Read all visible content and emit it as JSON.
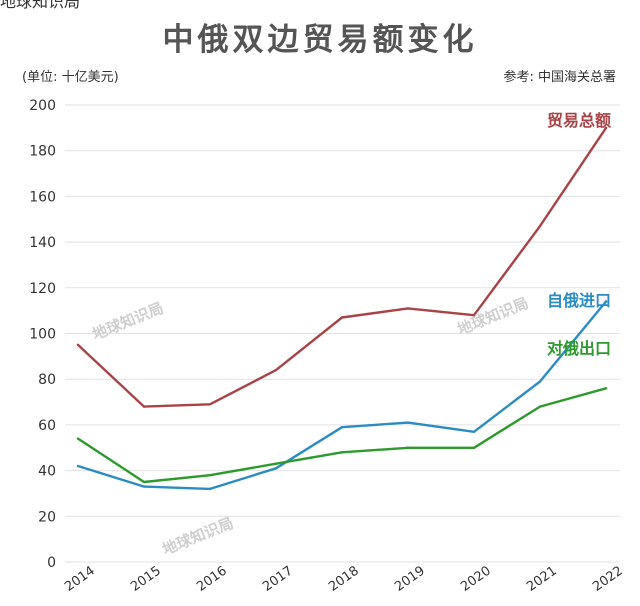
{
  "header": {
    "top_cut_text": "地球知识局",
    "title": "中俄双边贸易额变化",
    "unit": "(单位: 十亿美元)",
    "source": "参考: 中国海关总署"
  },
  "watermarks": [
    "地球知识局",
    "地球知识局",
    "地球知识局"
  ],
  "colors": {
    "total": "#a84448",
    "import": "#2b8cc4",
    "export": "#2e9a2e"
  },
  "chart_data": {
    "type": "line",
    "x": [
      "2014",
      "2015",
      "2016",
      "2017",
      "2018",
      "2019",
      "2020",
      "2021",
      "2022"
    ],
    "ylim": [
      0,
      200
    ],
    "yticks": [
      "0",
      "20",
      "40",
      "60",
      "80",
      "100",
      "120",
      "140",
      "160",
      "180",
      "200"
    ],
    "grid": true,
    "series": [
      {
        "name": "贸易总额",
        "values": [
          95,
          68,
          69,
          84,
          107,
          111,
          108,
          147,
          190
        ]
      },
      {
        "name": "自俄进口",
        "values": [
          42,
          33,
          32,
          41,
          59,
          61,
          57,
          79,
          114
        ]
      },
      {
        "name": "对俄出口",
        "values": [
          54,
          35,
          38,
          43,
          48,
          50,
          50,
          68,
          76
        ]
      }
    ]
  }
}
